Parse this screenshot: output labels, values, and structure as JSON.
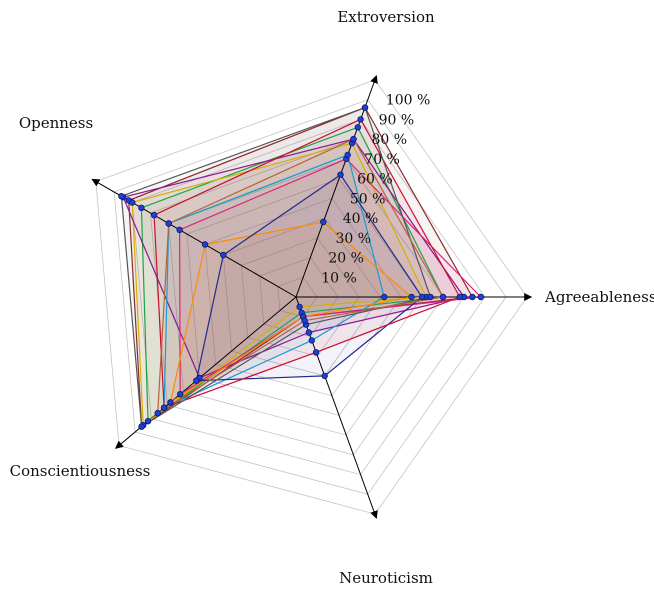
{
  "chart_data": {
    "type": "radar",
    "axes": [
      "Extroversion",
      "Agreeableness",
      "Neuroticism",
      "Conscientiousness",
      "Openness"
    ],
    "r_ticks": [
      "10 %",
      "20 %",
      "30 %",
      "40 %",
      "50 %",
      "60 %",
      "70 %",
      "80 %",
      "90 %",
      "100 %"
    ],
    "r_range": [
      0,
      100
    ],
    "grid": true,
    "point_color": "#1f3fd6",
    "series": [
      {
        "color": "#8a2b2b",
        "values": [
          96,
          84,
          10,
          96,
          92
        ]
      },
      {
        "color": "#1aa34a",
        "values": [
          86,
          70,
          8,
          92,
          85
        ]
      },
      {
        "color": "#d4b000",
        "values": [
          78,
          62,
          5,
          95,
          90
        ]
      },
      {
        "color": "#8b1a8b",
        "values": [
          80,
          80,
          18,
          60,
          95
        ]
      },
      {
        "color": "#e0207a",
        "values": [
          70,
          88,
          10,
          72,
          64
        ]
      },
      {
        "color": "#1a9ad4",
        "values": [
          72,
          42,
          22,
          82,
          70
        ]
      },
      {
        "color": "#ff8c00",
        "values": [
          38,
          55,
          10,
          78,
          50
        ]
      },
      {
        "color": "#222a8c",
        "values": [
          62,
          60,
          40,
          62,
          40
        ]
      },
      {
        "color": "#c8102e",
        "values": [
          90,
          78,
          28,
          82,
          78
        ]
      },
      {
        "color": "#555555",
        "values": [
          96,
          64,
          14,
          96,
          96
        ]
      },
      {
        "color": "#b5643c",
        "values": [
          80,
          70,
          12,
          86,
          70
        ]
      }
    ]
  }
}
